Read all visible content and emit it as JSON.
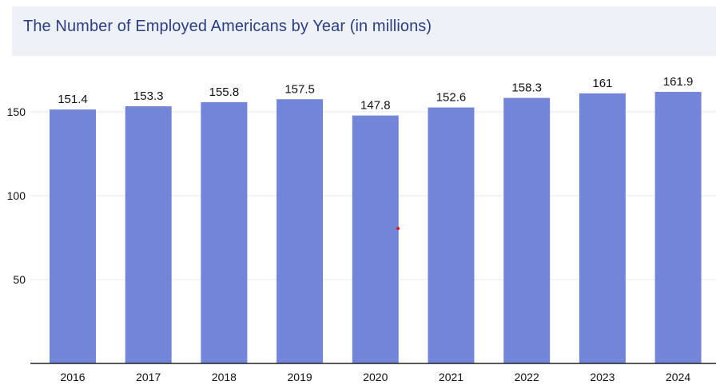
{
  "chart_data": {
    "type": "bar",
    "title": "The Number of Employed Americans by Year (in millions)",
    "xlabel": "",
    "ylabel": "",
    "categories": [
      "2016",
      "2017",
      "2018",
      "2019",
      "2020",
      "2021",
      "2022",
      "2023",
      "2024"
    ],
    "values": [
      151.4,
      153.3,
      155.8,
      157.5,
      147.8,
      152.6,
      158.3,
      161,
      161.9
    ],
    "data_labels": [
      "151.4",
      "153.3",
      "155.8",
      "157.5",
      "147.8",
      "152.6",
      "158.3",
      "161",
      "161.9"
    ],
    "yticks": [
      "50",
      "100",
      "150"
    ],
    "ylim": [
      0,
      170
    ],
    "grid": true,
    "legend": "none",
    "colors": {
      "bar": "#7285d8",
      "title": "#2b3d86",
      "title_background": "#eef2f8"
    }
  }
}
